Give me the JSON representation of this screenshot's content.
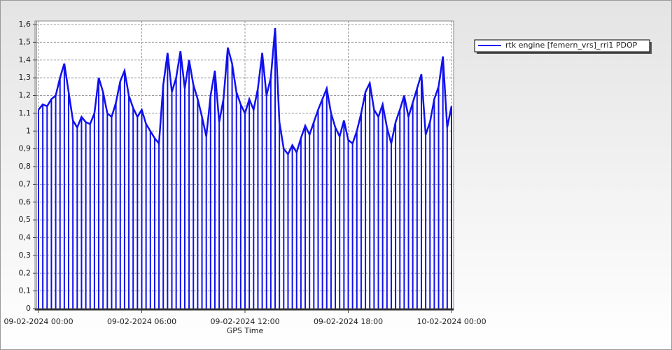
{
  "chart_data": {
    "type": "line",
    "x_label": "GPS Time",
    "x": [
      0,
      0.25,
      0.5,
      0.75,
      1,
      1.25,
      1.5,
      1.75,
      2,
      2.25,
      2.5,
      2.75,
      3,
      3.25,
      3.5,
      3.75,
      4,
      4.25,
      4.5,
      4.75,
      5,
      5.25,
      5.5,
      5.75,
      6,
      6.25,
      6.5,
      6.75,
      7,
      7.25,
      7.5,
      7.75,
      8,
      8.25,
      8.5,
      8.75,
      9,
      9.25,
      9.5,
      9.75,
      10,
      10.25,
      10.5,
      10.75,
      11,
      11.25,
      11.5,
      11.75,
      12,
      12.25,
      12.5,
      12.75,
      13,
      13.25,
      13.5,
      13.75,
      14,
      14.25,
      14.5,
      14.75,
      15,
      15.25,
      15.5,
      15.75,
      16,
      16.25,
      16.5,
      16.75,
      17,
      17.25,
      17.5,
      17.75,
      18,
      18.25,
      18.5,
      18.75,
      19,
      19.25,
      19.5,
      19.75,
      20,
      20.25,
      20.5,
      20.75,
      21,
      21.25,
      21.5,
      21.75,
      22,
      22.25,
      22.5,
      22.75,
      23,
      23.25,
      23.5,
      23.75,
      24
    ],
    "series": [
      {
        "name": "rtk engine [femern_vrs]_rri1 PDOP",
        "color": "#1010ee",
        "values": [
          1.12,
          1.15,
          1.14,
          1.18,
          1.2,
          1.3,
          1.38,
          1.22,
          1.06,
          1.02,
          1.08,
          1.05,
          1.04,
          1.1,
          1.3,
          1.22,
          1.1,
          1.08,
          1.16,
          1.28,
          1.34,
          1.2,
          1.13,
          1.08,
          1.12,
          1.04,
          1.0,
          0.96,
          0.93,
          1.26,
          1.44,
          1.22,
          1.3,
          1.45,
          1.24,
          1.4,
          1.26,
          1.18,
          1.08,
          0.97,
          1.2,
          1.34,
          1.05,
          1.18,
          1.47,
          1.38,
          1.22,
          1.15,
          1.1,
          1.18,
          1.12,
          1.24,
          1.44,
          1.2,
          1.3,
          1.58,
          1.05,
          0.9,
          0.87,
          0.92,
          0.88,
          0.96,
          1.03,
          0.98,
          1.05,
          1.12,
          1.18,
          1.24,
          1.1,
          1.02,
          0.97,
          1.06,
          0.95,
          0.93,
          1.0,
          1.1,
          1.22,
          1.27,
          1.12,
          1.08,
          1.15,
          1.02,
          0.93,
          1.05,
          1.12,
          1.2,
          1.08,
          1.16,
          1.24,
          1.32,
          0.98,
          1.05,
          1.18,
          1.25,
          1.42,
          1.02,
          1.14
        ]
      }
    ],
    "xlim": [
      0,
      24
    ],
    "xticks": [
      {
        "value": 0,
        "label": "09-02-2024 00:00"
      },
      {
        "value": 6,
        "label": "09-02-2024 06:00"
      },
      {
        "value": 12,
        "label": "09-02-2024 12:00"
      },
      {
        "value": 18,
        "label": "09-02-2024 18:00"
      },
      {
        "value": 24,
        "label": "10-02-2024 00:00"
      }
    ],
    "ylim": [
      0,
      1.6
    ],
    "yticks": [
      0,
      {
        "value": 0.1,
        "label": "0,1"
      },
      {
        "value": 0.2,
        "label": "0,2"
      },
      {
        "value": 0.3,
        "label": "0,3"
      },
      {
        "value": 0.4,
        "label": "0,4"
      },
      {
        "value": 0.5,
        "label": "0,5"
      },
      {
        "value": 0.6,
        "label": "0,6"
      },
      {
        "value": 0.7,
        "label": "0,7"
      },
      {
        "value": 0.8,
        "label": "0,8"
      },
      {
        "value": 0.9,
        "label": "0,9"
      },
      1,
      {
        "value": 1.1,
        "label": "1,1"
      },
      {
        "value": 1.2,
        "label": "1,2"
      },
      {
        "value": 1.3,
        "label": "1,3"
      },
      {
        "value": 1.4,
        "label": "1,4"
      },
      {
        "value": 1.5,
        "label": "1,5"
      },
      {
        "value": 1.6,
        "label": "1,6"
      }
    ],
    "grid": true
  }
}
